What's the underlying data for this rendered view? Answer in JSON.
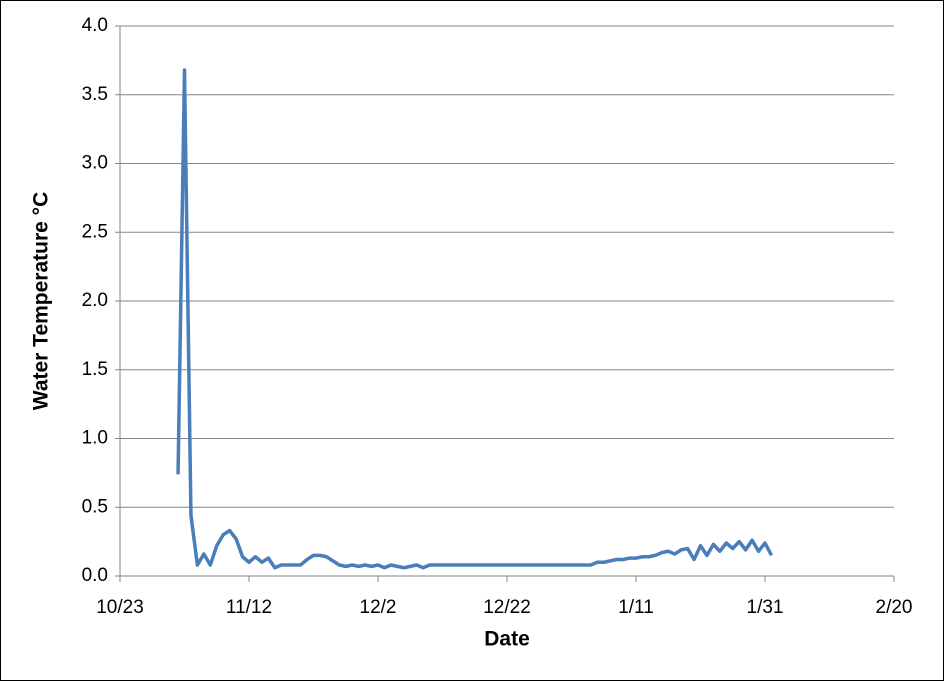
{
  "chart_data": {
    "type": "line",
    "xlabel": "Date",
    "ylabel": "Water Temperature °C",
    "x": [
      "11/1",
      "11/2",
      "11/3",
      "11/4",
      "11/5",
      "11/6",
      "11/7",
      "11/8",
      "11/9",
      "11/10",
      "11/11",
      "11/12",
      "11/13",
      "11/14",
      "11/15",
      "11/16",
      "11/17",
      "11/18",
      "11/19",
      "11/20",
      "11/21",
      "11/22",
      "11/23",
      "11/24",
      "11/25",
      "11/26",
      "11/27",
      "11/28",
      "11/29",
      "11/30",
      "12/1",
      "12/2",
      "12/3",
      "12/4",
      "12/5",
      "12/6",
      "12/7",
      "12/8",
      "12/9",
      "12/10",
      "12/11",
      "12/12",
      "12/13",
      "12/14",
      "12/15",
      "12/16",
      "12/17",
      "12/18",
      "12/19",
      "12/20",
      "12/21",
      "12/22",
      "12/23",
      "12/24",
      "12/25",
      "12/26",
      "12/27",
      "12/28",
      "12/29",
      "12/30",
      "12/31",
      "1/1",
      "1/2",
      "1/3",
      "1/4",
      "1/5",
      "1/6",
      "1/7",
      "1/8",
      "1/9",
      "1/10",
      "1/11",
      "1/12",
      "1/13",
      "1/14",
      "1/15",
      "1/16",
      "1/17",
      "1/18",
      "1/19",
      "1/20",
      "1/21",
      "1/22",
      "1/23",
      "1/24",
      "1/25",
      "1/26",
      "1/27",
      "1/28",
      "1/29",
      "1/30",
      "1/31",
      "2/1"
    ],
    "series": [
      {
        "name": "Water Temperature",
        "color": "#4a7ebb",
        "values": [
          0.74,
          3.68,
          0.44,
          0.08,
          0.16,
          0.08,
          0.22,
          0.3,
          0.33,
          0.27,
          0.14,
          0.1,
          0.14,
          0.1,
          0.13,
          0.06,
          0.08,
          0.08,
          0.08,
          0.08,
          0.12,
          0.15,
          0.15,
          0.14,
          0.11,
          0.08,
          0.07,
          0.08,
          0.07,
          0.08,
          0.07,
          0.08,
          0.06,
          0.08,
          0.07,
          0.06,
          0.07,
          0.08,
          0.06,
          0.08,
          0.08,
          0.08,
          0.08,
          0.08,
          0.08,
          0.08,
          0.08,
          0.08,
          0.08,
          0.08,
          0.08,
          0.08,
          0.08,
          0.08,
          0.08,
          0.08,
          0.08,
          0.08,
          0.08,
          0.08,
          0.08,
          0.08,
          0.08,
          0.08,
          0.08,
          0.1,
          0.1,
          0.11,
          0.12,
          0.12,
          0.13,
          0.13,
          0.14,
          0.14,
          0.15,
          0.17,
          0.18,
          0.16,
          0.19,
          0.2,
          0.12,
          0.22,
          0.15,
          0.23,
          0.18,
          0.24,
          0.2,
          0.25,
          0.19,
          0.26,
          0.18,
          0.24,
          0.15
        ]
      }
    ],
    "xlim": [
      "10/23",
      "2/20"
    ],
    "xticks": [
      "10/23",
      "11/12",
      "12/2",
      "12/22",
      "1/11",
      "1/31",
      "2/20"
    ],
    "ylim": [
      0,
      4
    ],
    "yticks": [
      {
        "value": 0,
        "label": "0.0"
      },
      {
        "value": 0.5,
        "label": "0.5"
      },
      {
        "value": 1,
        "label": "1.0"
      },
      {
        "value": 1.5,
        "label": "1.5"
      },
      {
        "value": 2,
        "label": "2.0"
      },
      {
        "value": 2.5,
        "label": "2.5"
      },
      {
        "value": 3,
        "label": "3.0"
      },
      {
        "value": 3.5,
        "label": "3.5"
      },
      {
        "value": 4,
        "label": "4.0"
      }
    ],
    "grid": true
  }
}
